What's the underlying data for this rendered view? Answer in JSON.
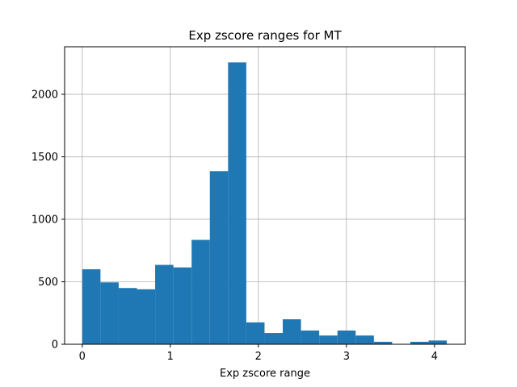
{
  "chart_data": {
    "type": "bar",
    "title": "Exp zscore ranges for MT",
    "xlabel": "Exp zscore range",
    "ylabel": "",
    "grid": true,
    "bar_color": "#1f77b4",
    "xlim": [
      -0.2,
      4.35
    ],
    "ylim": [
      0,
      2380
    ],
    "xticks": [
      0,
      1,
      2,
      3,
      4
    ],
    "yticks": [
      0,
      500,
      1000,
      1500,
      2000
    ],
    "bins": [
      {
        "x0": 0.0,
        "x1": 0.207,
        "value": 600
      },
      {
        "x0": 0.207,
        "x1": 0.414,
        "value": 495
      },
      {
        "x0": 0.414,
        "x1": 0.621,
        "value": 450
      },
      {
        "x0": 0.621,
        "x1": 0.828,
        "value": 440
      },
      {
        "x0": 0.828,
        "x1": 1.035,
        "value": 635
      },
      {
        "x0": 1.035,
        "x1": 1.242,
        "value": 615
      },
      {
        "x0": 1.242,
        "x1": 1.449,
        "value": 835
      },
      {
        "x0": 1.449,
        "x1": 1.656,
        "value": 1385
      },
      {
        "x0": 1.656,
        "x1": 1.863,
        "value": 2255
      },
      {
        "x0": 1.863,
        "x1": 2.07,
        "value": 175
      },
      {
        "x0": 2.07,
        "x1": 2.277,
        "value": 90
      },
      {
        "x0": 2.277,
        "x1": 2.484,
        "value": 200
      },
      {
        "x0": 2.484,
        "x1": 2.691,
        "value": 110
      },
      {
        "x0": 2.691,
        "x1": 2.898,
        "value": 70
      },
      {
        "x0": 2.898,
        "x1": 3.105,
        "value": 110
      },
      {
        "x0": 3.105,
        "x1": 3.312,
        "value": 70
      },
      {
        "x0": 3.312,
        "x1": 3.519,
        "value": 20
      },
      {
        "x0": 3.519,
        "x1": 3.726,
        "value": 0
      },
      {
        "x0": 3.726,
        "x1": 3.933,
        "value": 20
      },
      {
        "x0": 3.933,
        "x1": 4.14,
        "value": 30
      }
    ]
  }
}
